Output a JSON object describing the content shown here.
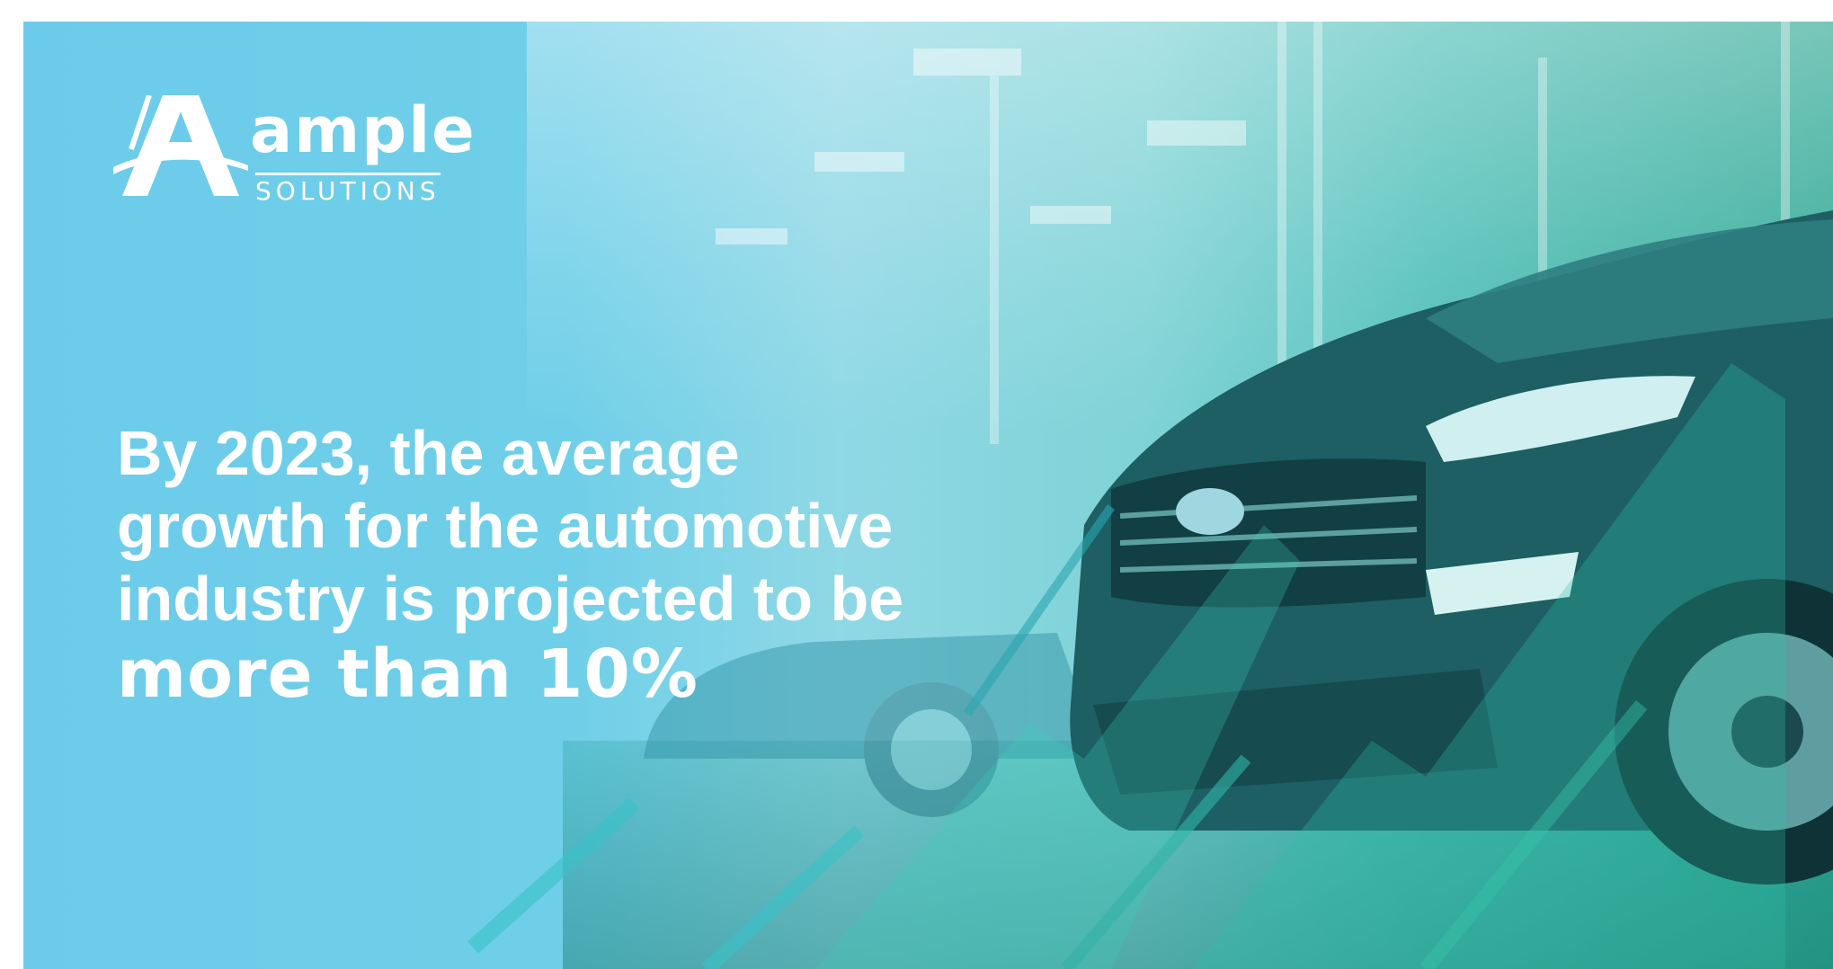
{
  "brand": {
    "name": "ampLe",
    "tagline": "SOLUTIONS",
    "logo_icon": "stylized-a-road-icon",
    "color": "#ffffff"
  },
  "headline": {
    "lines": [
      "By 2023, the average",
      "growth for the automotive",
      "industry is projected to be"
    ],
    "emphasis": "more than 10%"
  },
  "colors": {
    "sky_blue": "#6ccbea",
    "teal": "#2fa894",
    "text": "#ffffff"
  }
}
